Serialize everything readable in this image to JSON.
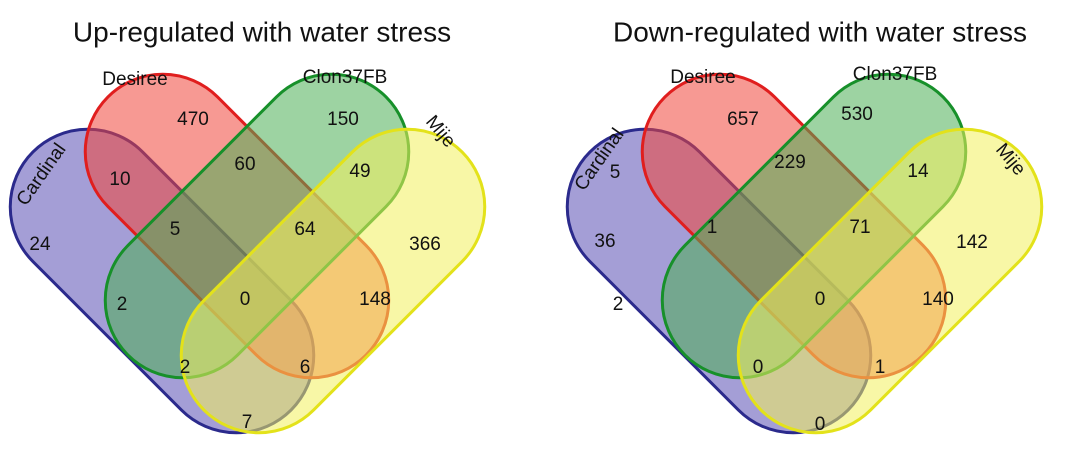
{
  "panels": [
    {
      "title": "Up-regulated with water stress",
      "sets": [
        "Cardinal",
        "Desiree",
        "Clon37FB",
        "Mije"
      ],
      "regions": [
        470,
        150,
        10,
        60,
        49,
        24,
        5,
        64,
        366,
        2,
        0,
        148,
        2,
        6,
        7
      ]
    },
    {
      "title": "Down-regulated with water stress",
      "sets": [
        "Cardinal",
        "Desiree",
        "Clon37FB",
        "Mije"
      ],
      "regions": [
        657,
        530,
        5,
        229,
        14,
        36,
        1,
        71,
        142,
        2,
        0,
        140,
        0,
        1,
        0
      ]
    }
  ]
}
